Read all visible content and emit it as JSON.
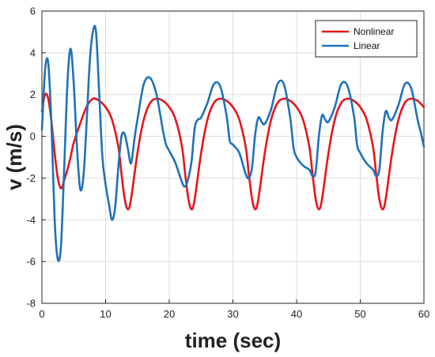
{
  "chart_data": {
    "type": "line",
    "xlabel": "time (sec)",
    "ylabel": "v (m/s)",
    "xlim": [
      0,
      60
    ],
    "ylim": [
      -8,
      6
    ],
    "xticks": [
      0,
      10,
      20,
      30,
      40,
      50,
      60
    ],
    "yticks": [
      -8,
      -6,
      -4,
      -2,
      0,
      2,
      4,
      6
    ],
    "grid": true,
    "legend_position": "top-right",
    "series": [
      {
        "name": "Nonlinear",
        "color": "#e8141b",
        "x": [
          0,
          0.5,
          1,
          1.5,
          2,
          2.5,
          3,
          3.5,
          4,
          4.5,
          5,
          6,
          7,
          8,
          9,
          10,
          11,
          12,
          12.5,
          13,
          13.5,
          14,
          15,
          16,
          17,
          18,
          19,
          20,
          21,
          22,
          22.5,
          23,
          23.5,
          24,
          25,
          26,
          27,
          28,
          29,
          30,
          31,
          32,
          32.5,
          33,
          33.5,
          34,
          35,
          36,
          37,
          38,
          39,
          40,
          41,
          42,
          42.5,
          43,
          43.5,
          44,
          45,
          46,
          47,
          48,
          49,
          50,
          51,
          52,
          52.5,
          53,
          53.5,
          54,
          55,
          56,
          57,
          58,
          59,
          60
        ],
        "y": [
          1.2,
          2.0,
          1.8,
          0.7,
          -0.8,
          -2.0,
          -2.5,
          -2.1,
          -1.6,
          -1.0,
          -0.3,
          0.6,
          1.4,
          1.8,
          1.7,
          1.4,
          0.8,
          -0.5,
          -1.8,
          -3.0,
          -3.5,
          -3.0,
          -0.8,
          0.8,
          1.6,
          1.8,
          1.7,
          1.4,
          0.8,
          -0.5,
          -1.8,
          -3.0,
          -3.5,
          -3.0,
          -0.8,
          0.8,
          1.6,
          1.8,
          1.7,
          1.4,
          0.8,
          -0.5,
          -1.8,
          -3.0,
          -3.5,
          -3.0,
          -0.8,
          0.8,
          1.6,
          1.8,
          1.7,
          1.4,
          0.8,
          -0.5,
          -1.8,
          -3.0,
          -3.5,
          -3.0,
          -0.8,
          0.8,
          1.6,
          1.8,
          1.7,
          1.4,
          0.8,
          -0.5,
          -1.8,
          -3.0,
          -3.5,
          -3.0,
          -0.8,
          0.8,
          1.6,
          1.8,
          1.7,
          1.4
        ]
      },
      {
        "name": "Linear",
        "color": "#1f72b8",
        "x": [
          0,
          0.5,
          1,
          1.5,
          2,
          2.5,
          3,
          3.5,
          4,
          4.5,
          5,
          5.5,
          6,
          6.5,
          7,
          7.5,
          8,
          8.5,
          9,
          9.5,
          10,
          10.5,
          11,
          11.5,
          12,
          12.5,
          13,
          13.5,
          14,
          14.5,
          15,
          16,
          17,
          18,
          19,
          19.5,
          20,
          21,
          22,
          22.5,
          23,
          23.5,
          24,
          24.5,
          25,
          26,
          27,
          28,
          29,
          29.5,
          30,
          31,
          32,
          32.5,
          33,
          33.5,
          34,
          34.5,
          35,
          36,
          37,
          38,
          39,
          39.5,
          40,
          41,
          42,
          42.5,
          43,
          43.5,
          44,
          44.5,
          45,
          46,
          47,
          48,
          49,
          49.5,
          50,
          51,
          52,
          52.5,
          53,
          53.5,
          54,
          54.5,
          55,
          56,
          57,
          58,
          59,
          59.5,
          60
        ],
        "y": [
          0.3,
          3.2,
          3.5,
          0.5,
          -4.0,
          -5.9,
          -5.2,
          -1.5,
          2.5,
          4.2,
          2.5,
          -0.5,
          -2.5,
          -2.0,
          0.5,
          3.5,
          5.0,
          5.0,
          2.0,
          -1.0,
          -2.3,
          -3.2,
          -4.0,
          -3.4,
          -1.5,
          0.0,
          0.1,
          -0.6,
          -1.3,
          -0.2,
          0.8,
          2.5,
          2.8,
          2.0,
          0.3,
          -0.4,
          -0.7,
          -1.3,
          -2.2,
          -2.4,
          -2.0,
          -1.2,
          0.4,
          0.8,
          0.9,
          1.6,
          2.5,
          2.4,
          1.0,
          -0.2,
          -0.4,
          -0.8,
          -1.8,
          -2.0,
          -1.5,
          0.1,
          0.9,
          0.7,
          0.6,
          1.3,
          2.5,
          2.5,
          0.9,
          -0.5,
          -1.0,
          -1.4,
          -1.6,
          -1.9,
          -1.7,
          0.0,
          1.0,
          0.8,
          0.7,
          1.4,
          2.5,
          2.4,
          1.0,
          -0.4,
          -0.8,
          -1.3,
          -1.6,
          -1.9,
          -1.6,
          0.2,
          1.2,
          0.9,
          0.8,
          1.5,
          2.5,
          2.3,
          0.8,
          0.2,
          -0.5
        ]
      }
    ]
  }
}
